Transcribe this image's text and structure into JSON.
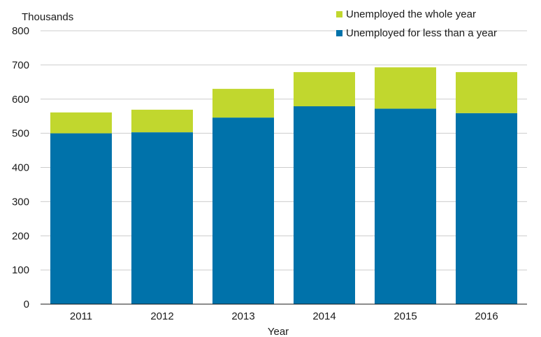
{
  "chart_data": {
    "type": "bar",
    "stacked": true,
    "categories": [
      "2011",
      "2012",
      "2013",
      "2014",
      "2015",
      "2016"
    ],
    "series": [
      {
        "name": "Unemployed for less than a year",
        "color": "#0072AA",
        "values": [
          500,
          503,
          546,
          579,
          572,
          559
        ]
      },
      {
        "name": "Unemployed the whole year",
        "color": "#C1D72E",
        "values": [
          61,
          66,
          84,
          100,
          121,
          120
        ]
      }
    ],
    "legend_order": [
      1,
      0
    ],
    "ylabel": "Thousands",
    "xlabel": "Year",
    "ylim": [
      0,
      800
    ],
    "yticks": [
      "0",
      "100",
      "200",
      "300",
      "400",
      "500",
      "600",
      "700",
      "800"
    ],
    "grid": "horizontal",
    "legend_position": "top-right"
  }
}
